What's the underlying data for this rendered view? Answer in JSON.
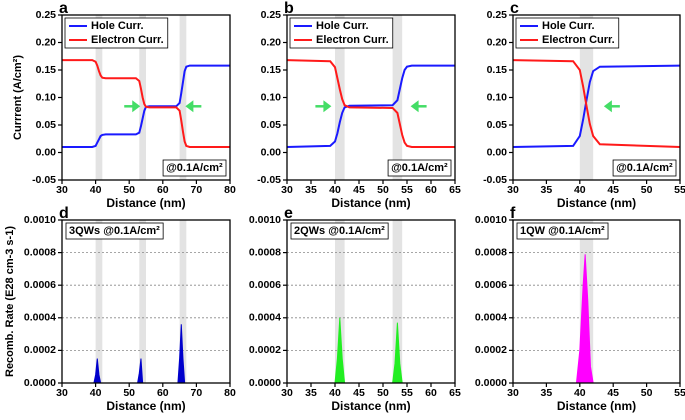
{
  "chart_data": [
    {
      "type": "line",
      "panel_label": "a",
      "ylabel": "Currrent (A/cm²)",
      "xlabel": "Distance (nm)",
      "annotation": "@0.1A/cm²",
      "legend": "upper left",
      "xlim": [
        30,
        80
      ],
      "xticks": [
        30,
        40,
        50,
        60,
        70,
        80
      ],
      "ylim": [
        -0.05,
        0.25
      ],
      "yticks": [
        -0.05,
        {
          "value": 0,
          "label": "0.00"
        },
        0.05,
        {
          "value": 0.1,
          "label": "0.10"
        },
        0.15,
        {
          "value": 0.2,
          "label": "0.20"
        },
        0.25
      ],
      "shaded_regions": [
        [
          40,
          42
        ],
        [
          53,
          55
        ],
        [
          65,
          67
        ]
      ],
      "x": [
        30,
        39,
        40,
        40.5,
        41,
        41.5,
        42,
        43,
        52,
        53,
        53.5,
        54,
        54.5,
        55,
        56,
        64,
        65,
        65.5,
        66,
        66.5,
        67,
        68,
        80
      ],
      "series": [
        {
          "name": "Hole Curr.",
          "color": "#1a1aff",
          "values": [
            0.01,
            0.01,
            0.012,
            0.018,
            0.024,
            0.03,
            0.032,
            0.033,
            0.033,
            0.036,
            0.048,
            0.062,
            0.076,
            0.083,
            0.084,
            0.084,
            0.09,
            0.108,
            0.128,
            0.148,
            0.156,
            0.158,
            0.158
          ]
        },
        {
          "name": "Electron Curr.",
          "color": "#ff1a1a",
          "values": [
            0.168,
            0.168,
            0.165,
            0.158,
            0.148,
            0.14,
            0.136,
            0.135,
            0.135,
            0.13,
            0.116,
            0.1,
            0.088,
            0.083,
            0.082,
            0.082,
            0.076,
            0.058,
            0.038,
            0.02,
            0.012,
            0.01,
            0.01
          ]
        }
      ]
    },
    {
      "type": "line",
      "panel_label": "b",
      "xlabel": "Distance (nm)",
      "annotation": "@0.1A/cm²",
      "legend": "upper left",
      "xlim": [
        30,
        65
      ],
      "xticks": [
        30,
        35,
        40,
        45,
        50,
        55,
        60,
        65
      ],
      "ylim": [
        -0.05,
        0.25
      ],
      "yticks": [
        -0.05,
        {
          "value": 0,
          "label": "0.00"
        },
        0.05,
        {
          "value": 0.1,
          "label": "0.10"
        },
        0.15,
        {
          "value": 0.2,
          "label": "0.20"
        },
        0.25
      ],
      "shaded_regions": [
        [
          40,
          42
        ],
        [
          52,
          54
        ]
      ],
      "x": [
        30,
        39,
        40,
        40.5,
        41,
        41.5,
        42,
        43,
        52,
        53,
        53.5,
        54,
        54.5,
        55,
        56,
        65
      ],
      "series": [
        {
          "name": "Hole Curr.",
          "color": "#1a1aff",
          "values": [
            0.01,
            0.012,
            0.02,
            0.035,
            0.055,
            0.072,
            0.082,
            0.085,
            0.086,
            0.095,
            0.115,
            0.135,
            0.15,
            0.156,
            0.158,
            0.158
          ]
        },
        {
          "name": "Electron Curr.",
          "color": "#ff1a1a",
          "values": [
            0.168,
            0.166,
            0.155,
            0.135,
            0.115,
            0.097,
            0.086,
            0.082,
            0.081,
            0.072,
            0.052,
            0.032,
            0.018,
            0.012,
            0.01,
            0.01
          ]
        }
      ]
    },
    {
      "type": "line",
      "panel_label": "c",
      "xlabel": "Distance (nm)",
      "annotation": "@0.1A/cm²",
      "legend": "upper left",
      "xlim": [
        30,
        55
      ],
      "xticks": [
        30,
        35,
        40,
        45,
        50,
        55
      ],
      "ylim": [
        -0.05,
        0.25
      ],
      "yticks": [
        -0.05,
        {
          "value": 0,
          "label": "0.00"
        },
        0.05,
        {
          "value": 0.1,
          "label": "0.10"
        },
        0.15,
        {
          "value": 0.2,
          "label": "0.20"
        },
        0.25
      ],
      "shaded_regions": [
        [
          40,
          42
        ]
      ],
      "x": [
        30,
        39,
        40,
        40.5,
        41,
        41.5,
        42,
        43,
        55
      ],
      "series": [
        {
          "name": "Hole Curr.",
          "color": "#1a1aff",
          "values": [
            0.01,
            0.012,
            0.03,
            0.06,
            0.095,
            0.128,
            0.148,
            0.156,
            0.158
          ]
        },
        {
          "name": "Electron Curr.",
          "color": "#ff1a1a",
          "values": [
            0.168,
            0.166,
            0.15,
            0.12,
            0.085,
            0.052,
            0.03,
            0.015,
            0.01
          ]
        }
      ]
    },
    {
      "type": "area",
      "panel_label": "d",
      "ylabel": "Recomb. Rate (E28 cm-3 s-1)",
      "xlabel": "Distance (nm)",
      "annotation": "3QWs @0.1A/cm²",
      "grid": true,
      "color": "#0000cc",
      "xlim": [
        30,
        80
      ],
      "xticks": [
        30,
        40,
        50,
        60,
        70,
        80
      ],
      "ylim": [
        0,
        0.001
      ],
      "yticks": [
        {
          "value": 0,
          "label": "0.0000"
        },
        0.0002,
        0.0004,
        0.0006,
        0.0008,
        {
          "value": 0.001,
          "label": "0.0010"
        }
      ],
      "shaded_regions": [
        [
          40,
          42
        ],
        [
          53,
          55
        ],
        [
          65,
          67
        ]
      ],
      "x": [
        30,
        39.5,
        40,
        40.5,
        41,
        41.5,
        52.5,
        53,
        53.5,
        54,
        64.5,
        65,
        65.5,
        66,
        66.5,
        80
      ],
      "values": [
        0,
        0,
        5e-05,
        0.00015,
        5e-05,
        0,
        0,
        6e-05,
        0.00015,
        0,
        0,
        0.00015,
        0.00036,
        0.00015,
        0,
        0
      ]
    },
    {
      "type": "area",
      "panel_label": "e",
      "xlabel": "Distance (nm)",
      "annotation": "2QWs @0.1A/cm²",
      "grid": true,
      "color": "#22ee22",
      "xlim": [
        30,
        65
      ],
      "xticks": [
        30,
        35,
        40,
        45,
        50,
        55,
        60,
        65
      ],
      "ylim": [
        0,
        0.001
      ],
      "yticks": [
        {
          "value": 0,
          "label": "0.0000"
        },
        0.0002,
        0.0004,
        0.0006,
        0.0008,
        {
          "value": 0.001,
          "label": "0.0010"
        }
      ],
      "shaded_regions": [
        [
          40,
          42
        ],
        [
          52,
          54
        ]
      ],
      "x": [
        30,
        40,
        40.5,
        41,
        41.5,
        42,
        52,
        52.5,
        53,
        53.5,
        54,
        65
      ],
      "values": [
        0,
        0,
        0.00015,
        0.0004,
        0.00015,
        0,
        0,
        0.00012,
        0.00037,
        0.00012,
        0,
        0
      ]
    },
    {
      "type": "area",
      "panel_label": "f",
      "xlabel": "Distance (nm)",
      "annotation": "1QW @0.1A/cm²",
      "grid": true,
      "color": "#ff00ff",
      "xlim": [
        30,
        55
      ],
      "xticks": [
        30,
        35,
        40,
        45,
        50,
        55
      ],
      "ylim": [
        0,
        0.001
      ],
      "yticks": [
        {
          "value": 0,
          "label": "0.0000"
        },
        0.0002,
        0.0004,
        0.0006,
        0.0008,
        {
          "value": 0.001,
          "label": "0.0010"
        }
      ],
      "shaded_regions": [
        [
          40,
          42
        ]
      ],
      "x": [
        30,
        39.5,
        40,
        40.5,
        40.8,
        41.2,
        41.6,
        42,
        55
      ],
      "values": [
        0,
        0,
        0.0002,
        0.0006,
        0.00079,
        0.0005,
        0.0001,
        0,
        0
      ]
    }
  ]
}
